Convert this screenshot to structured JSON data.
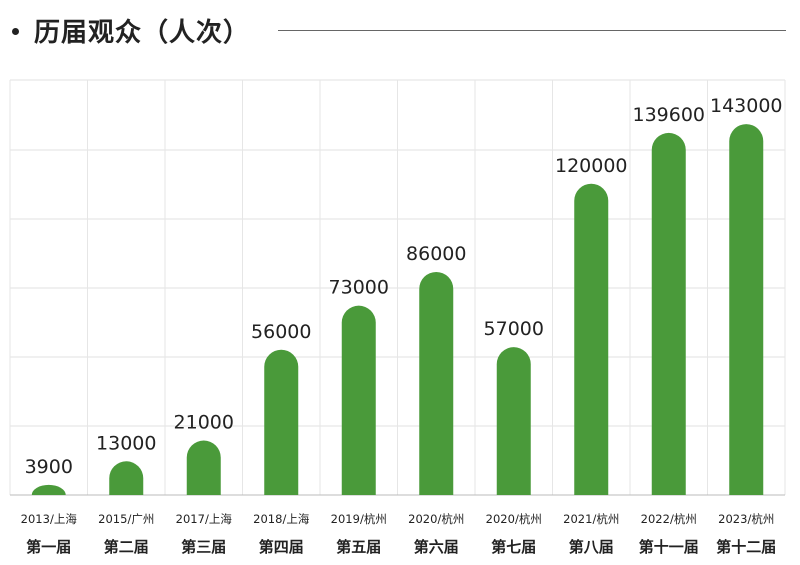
{
  "header": {
    "title": "历届观众（人次）"
  },
  "chart_data": {
    "type": "bar",
    "title": "历届观众（人次）",
    "xlabel": "",
    "ylabel": "",
    "ylim": [
      0,
      160000
    ],
    "grid": true,
    "bar_color": "#4a9a3a",
    "categories": [
      {
        "label": "2013/上海",
        "sub": "第一届"
      },
      {
        "label": "2015/广州",
        "sub": "第二届"
      },
      {
        "label": "2017/上海",
        "sub": "第三届"
      },
      {
        "label": "2018/上海",
        "sub": "第四届"
      },
      {
        "label": "2019/杭州",
        "sub": "第五届"
      },
      {
        "label": "2020/杭州",
        "sub": "第六届"
      },
      {
        "label": "2020/杭州",
        "sub": "第七届"
      },
      {
        "label": "2021/杭州",
        "sub": "第八届"
      },
      {
        "label": "2022/杭州",
        "sub": "第十一届"
      },
      {
        "label": "2023/杭州",
        "sub": "第十二届"
      }
    ],
    "values": [
      3900,
      13000,
      21000,
      56000,
      73000,
      86000,
      57000,
      120000,
      139600,
      143000
    ],
    "value_labels": [
      "3900",
      "13000",
      "21000",
      "56000",
      "73000",
      "86000",
      "57000",
      "120000",
      "139600",
      "143000"
    ]
  }
}
